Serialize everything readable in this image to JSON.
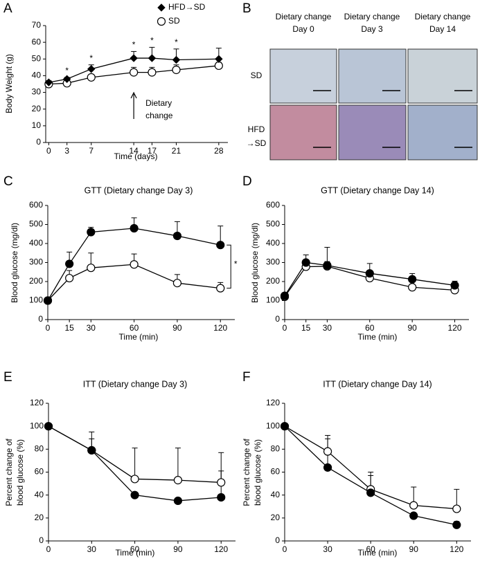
{
  "panel_labels": [
    "A",
    "B",
    "C",
    "D",
    "E",
    "F"
  ],
  "histology": {
    "columns": [
      [
        "Dietary change",
        "Day 0"
      ],
      [
        "Dietary change",
        "Day 3"
      ],
      [
        "Dietary change",
        "Day 14"
      ]
    ],
    "rows": [
      [
        "SD"
      ],
      [
        "HFD",
        "→SD"
      ]
    ]
  },
  "chart_data": [
    {
      "type": "line",
      "xlabel": "Time (days)",
      "ylabel": "Body  Weight (g)",
      "x": [
        0,
        3,
        7,
        14,
        17,
        21,
        28
      ],
      "xlim": [
        -0.5,
        29.5
      ],
      "xticks": [
        0,
        3,
        7,
        14,
        17,
        21,
        28
      ],
      "ylim": [
        0,
        70
      ],
      "yticks": [
        0,
        10,
        20,
        30,
        40,
        50,
        60,
        70
      ],
      "series": [
        {
          "name": "SD",
          "color": "#ffffff",
          "marker": "circle",
          "values": [
            35,
            35.5,
            39,
            42,
            42,
            43.5,
            46
          ],
          "errors": [
            1,
            1,
            1,
            3,
            3,
            3,
            2
          ]
        },
        {
          "name": "HFD→SD",
          "color": "#000000",
          "marker": "diamond",
          "values": [
            36,
            38,
            44,
            50.5,
            50.5,
            49.5,
            50
          ],
          "errors": [
            1,
            1,
            2.5,
            4,
            6.5,
            6.5,
            6.5
          ]
        }
      ],
      "asterisks": {
        "text": "*",
        "x": [
          3,
          7,
          14,
          17,
          21
        ]
      },
      "annotation": {
        "text": [
          "Dietary",
          "change"
        ],
        "x": 14
      }
    },
    {
      "type": "line",
      "title": "GTT (Dietary change Day 3)",
      "xlabel": "Time (min)",
      "ylabel": "Blood glucose (mg/dl)",
      "x": [
        0,
        15,
        30,
        60,
        90,
        120
      ],
      "xlim": [
        0,
        130
      ],
      "xticks": [
        0,
        15,
        30,
        60,
        90,
        120
      ],
      "ylim": [
        0,
        600
      ],
      "yticks": [
        0,
        100,
        200,
        300,
        400,
        500,
        600
      ],
      "series": [
        {
          "color": "#ffffff",
          "marker": "circle",
          "values": [
            100,
            218,
            272,
            290,
            192,
            165
          ],
          "errors": [
            0,
            40,
            78,
            55,
            45,
            30
          ]
        },
        {
          "color": "#000000",
          "marker": "circle",
          "values": [
            100,
            293,
            460,
            480,
            440,
            392
          ],
          "errors": [
            0,
            62,
            25,
            55,
            75,
            100
          ]
        }
      ],
      "bracket": {
        "text": "*"
      }
    },
    {
      "type": "line",
      "title": "GTT (Dietary change Day 14)",
      "xlabel": "Time (min)",
      "ylabel": "Blood glucose (mg/dl)",
      "x": [
        0,
        15,
        30,
        60,
        90,
        120
      ],
      "xlim": [
        0,
        130
      ],
      "xticks": [
        0,
        15,
        30,
        60,
        90,
        120
      ],
      "ylim": [
        0,
        600
      ],
      "yticks": [
        0,
        100,
        200,
        300,
        400,
        500,
        600
      ],
      "series": [
        {
          "color": "#ffffff",
          "marker": "circle",
          "values": [
            120,
            278,
            280,
            218,
            170,
            155
          ],
          "errors": [
            10,
            20,
            25,
            10,
            10,
            10
          ]
        },
        {
          "color": "#000000",
          "marker": "circle",
          "values": [
            125,
            300,
            285,
            243,
            212,
            180
          ],
          "errors": [
            0,
            40,
            95,
            52,
            30,
            22
          ]
        }
      ]
    },
    {
      "type": "line",
      "title": "ITT (Dietary change Day 3)",
      "xlabel": "Time (min)",
      "ylabel": [
        "Percent change of",
        "blood glucose (%)"
      ],
      "x": [
        0,
        30,
        60,
        90,
        120
      ],
      "xlim": [
        0,
        130
      ],
      "xticks": [
        0,
        30,
        60,
        90,
        120
      ],
      "ylim": [
        0,
        120
      ],
      "yticks": [
        0,
        20,
        40,
        60,
        80,
        100,
        120
      ],
      "series": [
        {
          "color": "#ffffff",
          "marker": "circle",
          "values": [
            100,
            79,
            54,
            53,
            51
          ],
          "errors": [
            0,
            16,
            27,
            28,
            26
          ]
        },
        {
          "color": "#000000",
          "marker": "circle",
          "values": [
            100,
            79,
            40,
            35,
            38
          ],
          "errors": [
            0,
            10,
            0,
            0,
            23
          ]
        }
      ]
    },
    {
      "type": "line",
      "title": "ITT (Dietary change Day 14)",
      "xlabel": "Time (min)",
      "ylabel": [
        "Percent change of",
        "blood glucose (%)"
      ],
      "x": [
        0,
        30,
        60,
        90,
        120
      ],
      "xlim": [
        0,
        130
      ],
      "xticks": [
        0,
        30,
        60,
        90,
        120
      ],
      "ylim": [
        0,
        120
      ],
      "yticks": [
        0,
        20,
        40,
        60,
        80,
        100,
        120
      ],
      "series": [
        {
          "color": "#ffffff",
          "marker": "circle",
          "values": [
            100,
            78,
            45,
            31,
            28
          ],
          "errors": [
            0,
            14,
            15,
            16,
            17
          ]
        },
        {
          "color": "#000000",
          "marker": "circle",
          "values": [
            100,
            64,
            42,
            22,
            14
          ],
          "errors": [
            0,
            25,
            15,
            0,
            3
          ]
        }
      ]
    }
  ]
}
